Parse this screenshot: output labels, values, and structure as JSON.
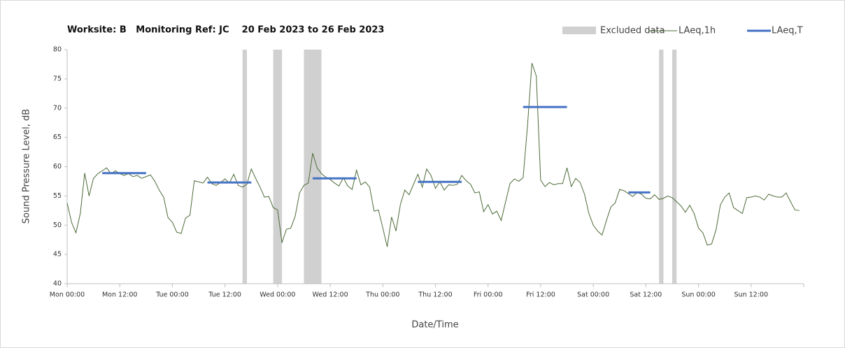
{
  "chart_data": {
    "type": "line",
    "title": "Worksite: B   Monitoring Ref: JC    20 Feb 2023 to 26 Feb 2023",
    "ylabel": "Sound Pressure Level, dB",
    "xlabel": "Date/Time",
    "xlim": [
      0,
      168
    ],
    "xticks": [
      {
        "value": 0,
        "label": "Mon 00:00"
      },
      {
        "value": 12,
        "label": "Mon 12:00"
      },
      {
        "value": 24,
        "label": "Tue 00:00"
      },
      {
        "value": 36,
        "label": "Tue 12:00"
      },
      {
        "value": 48,
        "label": "Wed 00:00"
      },
      {
        "value": 60,
        "label": "Wed 12:00"
      },
      {
        "value": 72,
        "label": "Thu 00:00"
      },
      {
        "value": 84,
        "label": "Thu 12:00"
      },
      {
        "value": 96,
        "label": "Fri 00:00"
      },
      {
        "value": 108,
        "label": "Fri 12:00"
      },
      {
        "value": 120,
        "label": "Sat 00:00"
      },
      {
        "value": 132,
        "label": "Sat 12:00"
      },
      {
        "value": 144,
        "label": "Sun 00:00"
      },
      {
        "value": 156,
        "label": "Sun 12:00"
      }
    ],
    "ylim": [
      40,
      80
    ],
    "yticks": [
      40,
      45,
      50,
      55,
      60,
      65,
      70,
      75,
      80
    ],
    "x": [
      0,
      1,
      2,
      3,
      4,
      5,
      6,
      7,
      8,
      9,
      10,
      11,
      12,
      13,
      14,
      15,
      16,
      17,
      18,
      19,
      20,
      21,
      22,
      23,
      24,
      25,
      26,
      27,
      28,
      29,
      30,
      31,
      32,
      33,
      34,
      35,
      36,
      37,
      38,
      39,
      40,
      41,
      42,
      43,
      44,
      45,
      46,
      47,
      48,
      49,
      50,
      51,
      52,
      53,
      54,
      55,
      56,
      57,
      58,
      59,
      60,
      61,
      62,
      63,
      64,
      65,
      66,
      67,
      68,
      69,
      70,
      71,
      72,
      73,
      74,
      75,
      76,
      77,
      78,
      79,
      80,
      81,
      82,
      83,
      84,
      85,
      86,
      87,
      88,
      89,
      90,
      91,
      92,
      93,
      94,
      95,
      96,
      97,
      98,
      99,
      100,
      101,
      102,
      103,
      104,
      105,
      106,
      107,
      108,
      109,
      110,
      111,
      112,
      113,
      114,
      115,
      116,
      117,
      118,
      119,
      120,
      121,
      122,
      123,
      124,
      125,
      126,
      127,
      128,
      129,
      130,
      131,
      132,
      133,
      134,
      135,
      136,
      137,
      138,
      139,
      140,
      141,
      142,
      143,
      144,
      145,
      146,
      147,
      148,
      149,
      150,
      151,
      152,
      153,
      154,
      155,
      156,
      157,
      158,
      159,
      160,
      161,
      162,
      163,
      164,
      165,
      166,
      167
    ],
    "series": [
      {
        "name": "LAeq,1h",
        "color": "#4e6b38",
        "values": [
          53.8,
          50.5,
          48.7,
          52,
          58.9,
          55,
          58,
          58.8,
          59.3,
          59.8,
          58.8,
          59.3,
          58.8,
          58.5,
          58.8,
          58.3,
          58.5,
          58,
          58.3,
          58.6,
          57.5,
          56,
          54.8,
          51.3,
          50.5,
          48.8,
          48.6,
          51.2,
          51.7,
          57.6,
          57.4,
          57.2,
          58.2,
          57.1,
          56.8,
          57.3,
          57.9,
          57.2,
          58.7,
          56.8,
          56.5,
          57,
          59.6,
          58,
          56.5,
          54.8,
          54.9,
          53,
          52.6,
          47,
          49.3,
          49.5,
          51.5,
          55.5,
          56.8,
          57.2,
          62.3,
          59.8,
          58.8,
          58.2,
          57.8,
          57.2,
          56.7,
          58.1,
          56.7,
          56.1,
          59.4,
          56.9,
          57.4,
          56.5,
          52.4,
          52.6,
          49.5,
          46.3,
          51.4,
          49,
          53.5,
          56,
          55.2,
          57,
          58.7,
          56.5,
          59.6,
          58.5,
          56.3,
          57.4,
          56,
          56.9,
          56.8,
          57,
          58.5,
          57.6,
          57,
          55.5,
          55.7,
          52.3,
          53.5,
          51.9,
          52.4,
          50.8,
          54,
          57.1,
          57.9,
          57.5,
          58.1,
          67,
          77.7,
          75.5,
          57.7,
          56.6,
          57.3,
          56.9,
          57.1,
          57.1,
          59.8,
          56.6,
          58,
          57.3,
          55.3,
          52,
          50,
          49,
          48.3,
          50.8,
          53.1,
          53.8,
          56.1,
          55.9,
          55.4,
          54.9,
          55.6,
          55.3,
          54.6,
          54.5,
          55.2,
          54.4,
          54.6,
          55,
          54.7,
          54,
          53.3,
          52.2,
          53.4,
          52,
          49.5,
          48.7,
          46.6,
          46.8,
          49.2,
          53.5,
          54.8,
          55.5,
          53,
          52.5,
          52,
          54.7,
          54.8,
          55,
          54.8,
          54.3,
          55.3,
          55,
          54.8,
          54.8,
          55.5,
          54,
          52.6,
          52.5
        ]
      }
    ],
    "periods": {
      "name": "LAeq,T",
      "color": "#4472c4",
      "start": [
        8,
        32,
        56,
        80,
        104,
        128
      ],
      "end": [
        18,
        42,
        66,
        90,
        114,
        133
      ],
      "values": [
        58.9,
        57.3,
        58.0,
        57.4,
        70.2,
        55.6
      ]
    },
    "excluded": {
      "name": "Excluded data",
      "color": "#d0d0d0",
      "start": [
        40,
        47,
        54,
        135,
        138
      ],
      "end": [
        41,
        49,
        58,
        136,
        139
      ]
    }
  }
}
